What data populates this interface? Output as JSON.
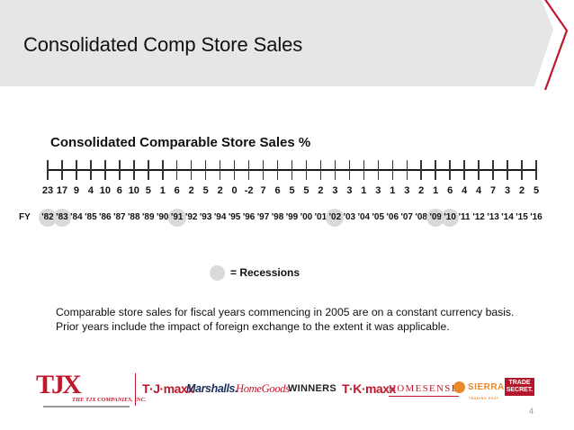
{
  "slide": {
    "title": "Consolidated Comp Store Sales",
    "page_number": "4",
    "banner_fill": "#e6e6e6",
    "accent_color": "#c0182d"
  },
  "chart_data": {
    "type": "table",
    "title": "Consolidated Comparable Store Sales %",
    "row_label": "FY",
    "categories": [
      "'82",
      "'83",
      "'84",
      "'85",
      "'86",
      "'87",
      "'88",
      "'89",
      "'90",
      "'91",
      "'92",
      "'93",
      "'94",
      "'95",
      "'96",
      "'97",
      "'98",
      "'99",
      "'00",
      "'01",
      "'02",
      "'03",
      "'04",
      "'05",
      "'06",
      "'07",
      "'08",
      "'09",
      "'10",
      "'11",
      "'12",
      "'13",
      "'14",
      "'15",
      "'16"
    ],
    "values": [
      23,
      17,
      9,
      4,
      10,
      6,
      10,
      5,
      1,
      6,
      2,
      5,
      2,
      0,
      -2,
      7,
      6,
      5,
      5,
      2,
      3,
      3,
      1,
      3,
      1,
      3,
      2,
      1,
      6,
      4,
      4,
      7,
      3,
      2,
      5
    ],
    "recession_years": [
      "'82",
      "'83",
      "'91",
      "'02",
      "'09",
      "'10"
    ],
    "recession_color": "#d9d9d9",
    "legend": "= Recessions"
  },
  "legend": {
    "label": "= Recessions"
  },
  "note": {
    "line1": "Comparable store sales for fiscal years commencing in 2005 are on a constant currency basis.",
    "line2": "Prior years include the impact of foreign exchange to the extent it was applicable."
  },
  "footer": {
    "corporate_logo": {
      "main": "TJX",
      "sub": "THE TJX COMPANIES, INC."
    },
    "brands": {
      "tjmaxx": "T·J·maxx",
      "marshalls": "Marshalls.",
      "homegoods": "HomeGoods",
      "winners": "WINNERS",
      "tkmaxx": "T·K·maxx",
      "homesense": "HOMESENSE",
      "sierra": "SIERRA",
      "sierra_sub": "TRADING POST",
      "trade_secret_1": "TRADE",
      "trade_secret_2": "SECRET."
    }
  }
}
